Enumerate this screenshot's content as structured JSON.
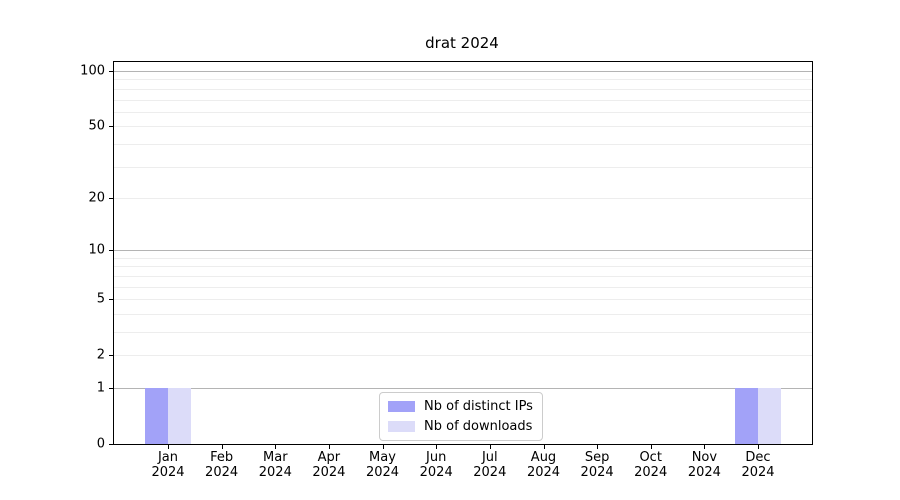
{
  "chart_data": {
    "type": "bar",
    "title": "drat 2024",
    "x_axis": {
      "categories": [
        {
          "month": "Jan",
          "year": "2024"
        },
        {
          "month": "Feb",
          "year": "2024"
        },
        {
          "month": "Mar",
          "year": "2024"
        },
        {
          "month": "Apr",
          "year": "2024"
        },
        {
          "month": "May",
          "year": "2024"
        },
        {
          "month": "Jun",
          "year": "2024"
        },
        {
          "month": "Jul",
          "year": "2024"
        },
        {
          "month": "Aug",
          "year": "2024"
        },
        {
          "month": "Sep",
          "year": "2024"
        },
        {
          "month": "Oct",
          "year": "2024"
        },
        {
          "month": "Nov",
          "year": "2024"
        },
        {
          "month": "Dec",
          "year": "2024"
        }
      ]
    },
    "y_axis": {
      "scale": "log1p",
      "range": [
        0,
        100
      ],
      "tick_values": [
        0,
        1,
        2,
        5,
        10,
        20,
        50,
        100
      ],
      "major_gridlines": [
        1,
        10,
        100
      ],
      "minor_gridlines": [
        2,
        3,
        4,
        5,
        6,
        7,
        8,
        9,
        20,
        30,
        40,
        50,
        60,
        70,
        80,
        90
      ]
    },
    "series": [
      {
        "name": "Nb of distinct IPs",
        "color": "#a2a2f8",
        "values": [
          1,
          0,
          0,
          0,
          0,
          0,
          0,
          0,
          0,
          0,
          0,
          1
        ]
      },
      {
        "name": "Nb of downloads",
        "color": "#dcdcf9",
        "values": [
          1,
          0,
          0,
          0,
          0,
          0,
          0,
          0,
          0,
          0,
          0,
          1
        ]
      }
    ],
    "legend": {
      "position": "lower-center",
      "entries": [
        "Nb of distinct IPs",
        "Nb of downloads"
      ]
    }
  },
  "colors": {
    "background": "#ffffff",
    "axis_frame": "#000000",
    "major_grid": "#b4b4b4",
    "minor_grid": "#ededed",
    "legend_border": "#cccccc"
  }
}
